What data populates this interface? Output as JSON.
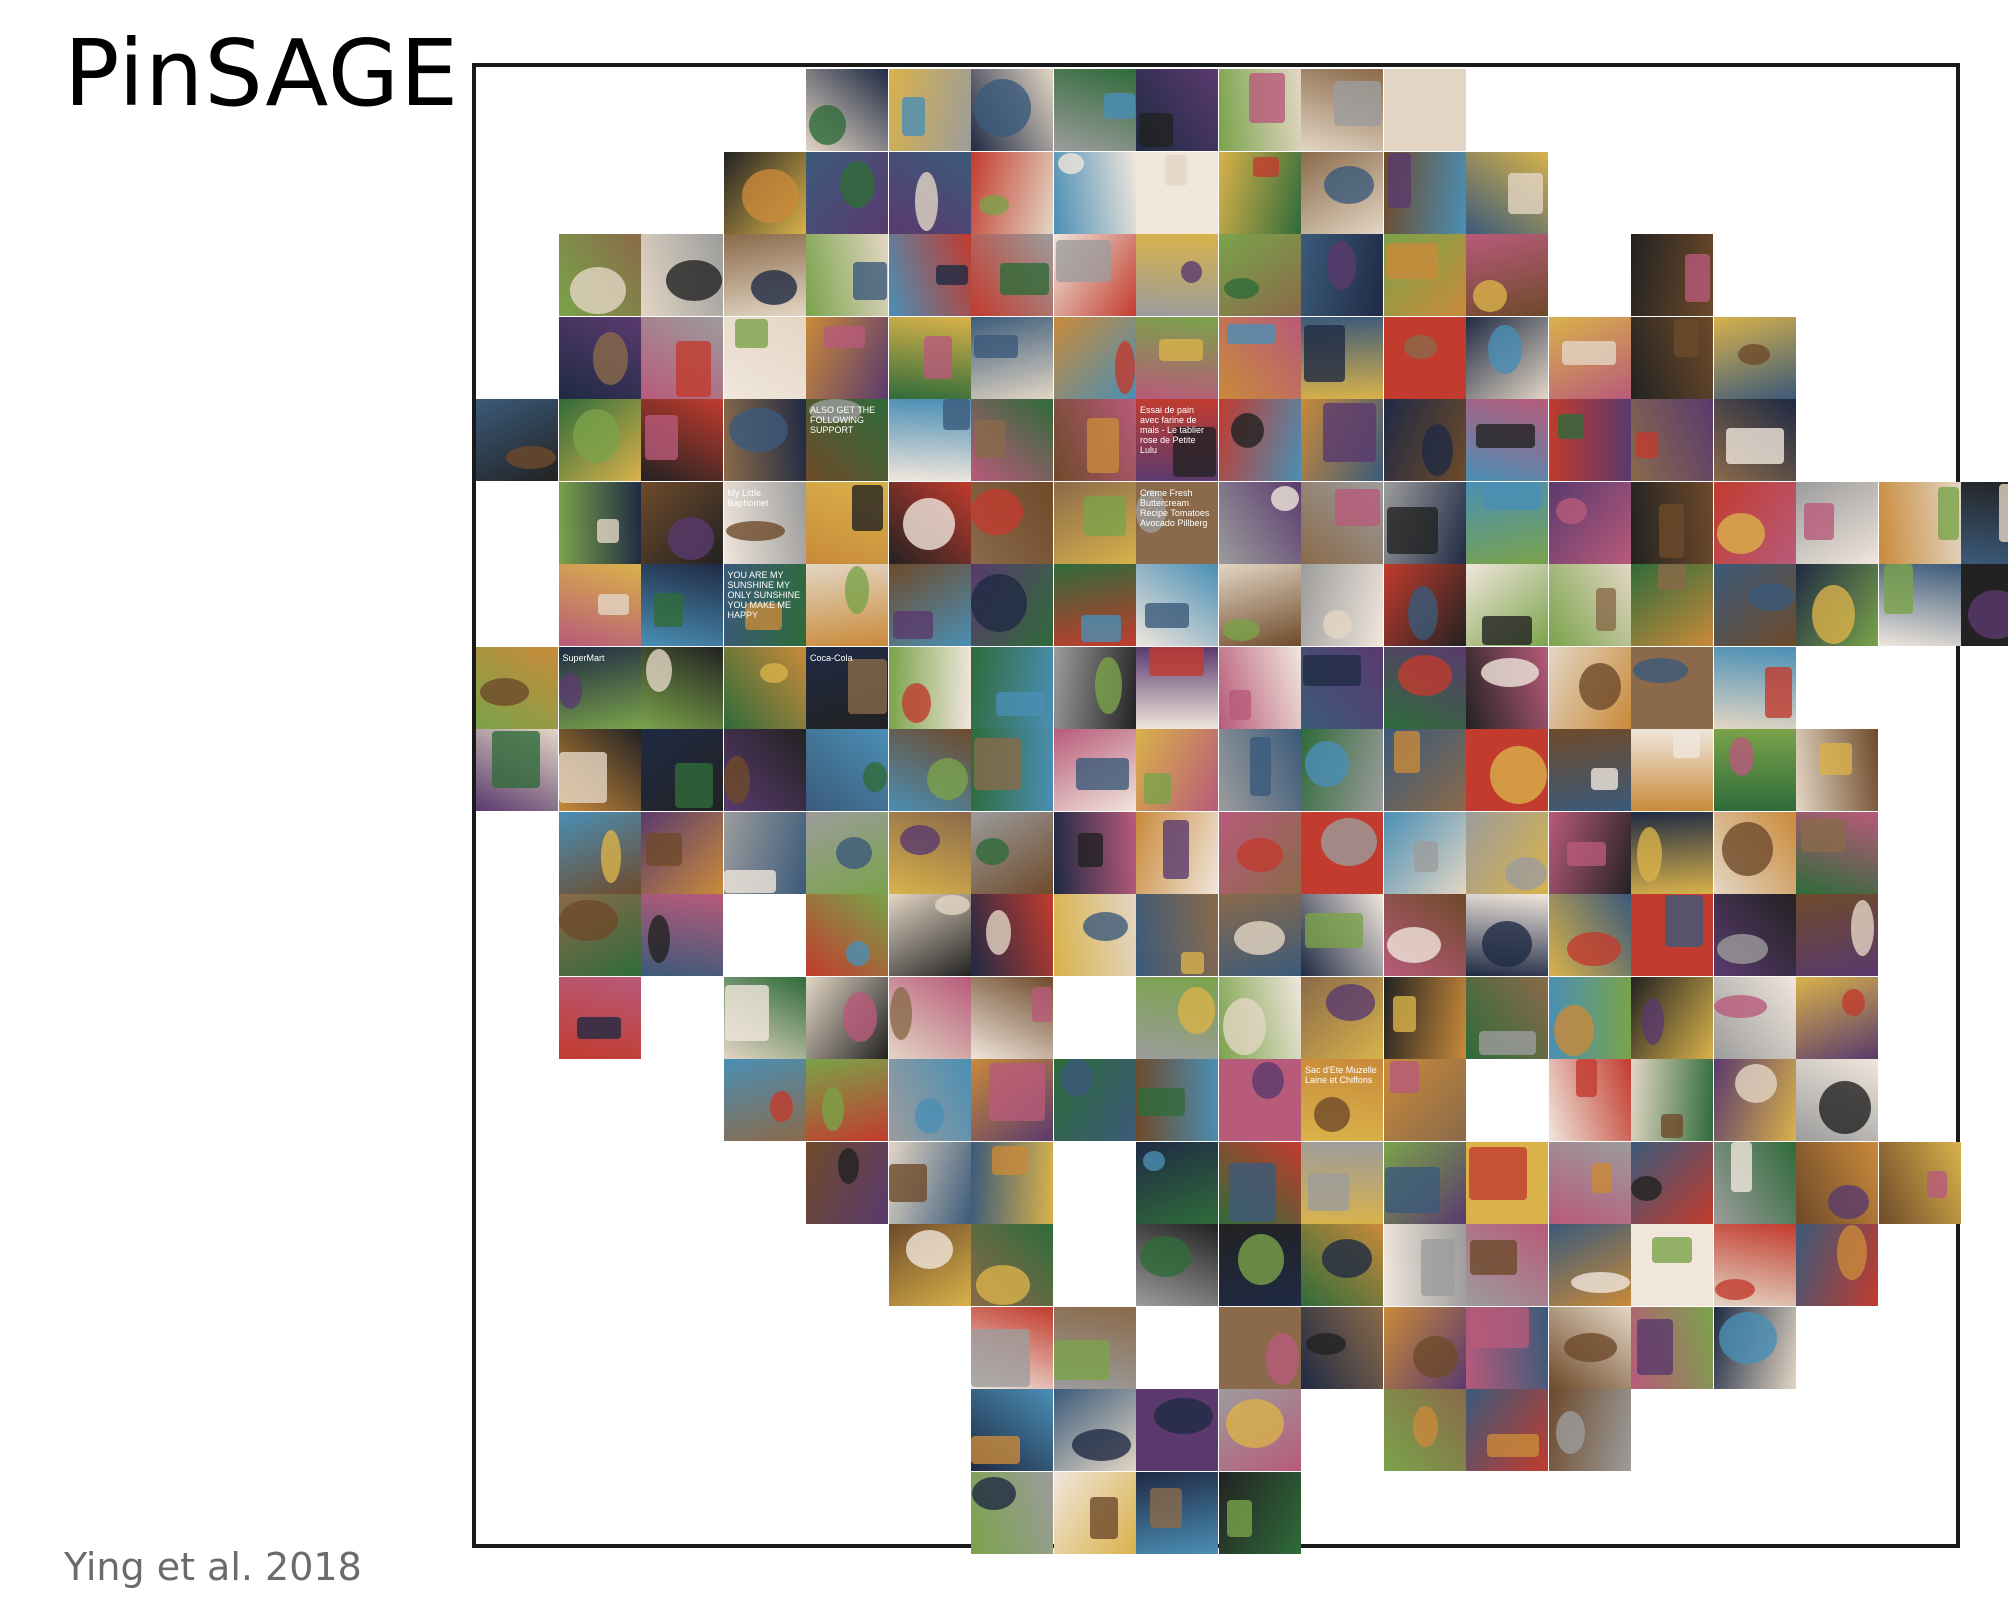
{
  "slide": {
    "title": "PinSAGE",
    "citation": "Ying et al. 2018"
  },
  "mosaic": {
    "description_colors": [
      "#3b5a7a",
      "#8a6a4a",
      "#c23b2e",
      "#2f6b3a",
      "#d9b24a",
      "#5a3a6e",
      "#9c9c9c",
      "#e3d6c4",
      "#1f2a44",
      "#b85a7a",
      "#4a8fb5",
      "#6e4a2a",
      "#222222",
      "#f0e6dc",
      "#7aa34a",
      "#c98a3a"
    ],
    "rows": [
      {
        "start": 4,
        "cols": [
          0,
          1,
          2,
          3,
          4,
          5,
          6,
          7
        ]
      },
      {
        "start": 3,
        "cols": [
          0,
          1,
          2,
          3,
          4,
          5,
          6,
          7,
          8,
          9
        ]
      },
      {
        "start": 1,
        "cols": [
          0,
          1,
          2,
          3,
          4,
          5,
          6,
          7,
          8,
          9,
          10,
          11,
          13
        ]
      },
      {
        "start": 1,
        "cols": [
          0,
          1,
          2,
          3,
          4,
          5,
          6,
          7,
          8,
          9,
          10,
          11,
          12,
          13,
          14
        ]
      },
      {
        "start": 0,
        "cols": [
          0,
          1,
          2,
          3,
          4,
          5,
          6,
          7,
          8,
          9,
          10,
          11,
          12,
          13,
          14,
          15
        ]
      },
      {
        "start": 1,
        "cols": [
          0,
          1,
          2,
          3,
          4,
          5,
          6,
          7,
          8,
          9,
          10,
          11,
          12,
          13,
          14,
          15,
          16,
          17
        ]
      },
      {
        "start": 1,
        "cols": [
          0,
          1,
          2,
          3,
          4,
          5,
          6,
          7,
          8,
          9,
          10,
          11,
          12,
          13,
          14,
          15,
          16,
          17
        ]
      },
      {
        "start": 0,
        "cols": [
          0,
          1,
          2,
          3,
          4,
          5,
          6,
          7,
          8,
          9,
          10,
          11,
          12,
          13,
          14,
          15
        ]
      },
      {
        "start": 0,
        "cols": [
          0,
          1,
          2,
          3,
          4,
          5,
          6,
          7,
          8,
          9,
          10,
          11,
          12,
          13,
          14,
          15,
          16
        ]
      },
      {
        "start": 1,
        "cols": [
          0,
          1,
          2,
          3,
          4,
          5,
          6,
          7,
          8,
          9,
          10,
          11,
          12,
          13,
          14,
          15
        ]
      },
      {
        "start": 1,
        "cols": [
          0,
          1,
          3,
          4,
          5,
          6,
          7,
          8,
          9,
          10,
          11,
          12,
          13,
          14,
          15
        ]
      },
      {
        "start": 1,
        "cols": [
          0,
          2,
          3,
          4,
          5,
          7,
          8,
          9,
          10,
          11,
          12,
          13,
          14,
          15
        ]
      },
      {
        "start": 3,
        "cols": [
          0,
          1,
          2,
          3,
          4,
          5,
          6,
          7,
          8,
          10,
          11,
          12,
          13
        ]
      },
      {
        "start": 4,
        "cols": [
          0,
          1,
          2,
          4,
          5,
          6,
          7,
          8,
          9,
          10,
          11,
          12,
          13
        ]
      },
      {
        "start": 5,
        "cols": [
          0,
          1,
          3,
          4,
          5,
          6,
          7,
          8,
          9,
          10,
          11
        ]
      },
      {
        "start": 6,
        "cols": [
          0,
          1,
          3,
          4,
          5,
          6,
          7,
          8,
          9
        ]
      },
      {
        "start": 6,
        "cols": [
          0,
          1,
          2,
          3,
          5,
          6,
          7
        ]
      },
      {
        "start": 6,
        "cols": [
          0,
          1,
          2,
          3
        ]
      }
    ],
    "text_tiles": [
      {
        "row": 5,
        "col": 3,
        "text": "My Little Baphomet"
      },
      {
        "row": 6,
        "col": 3,
        "text": "YOU ARE MY SUNSHINE MY ONLY SUNSHINE YOU MAKE ME HAPPY"
      },
      {
        "row": 4,
        "col": 4,
        "text": "ALSO GET THE FOLLOWING SUPPORT"
      },
      {
        "row": 4,
        "col": 8,
        "text": "Essai de pain avec farine de mais - Le tablier rose de Petite Lulu"
      },
      {
        "row": 5,
        "col": 8,
        "text": "Creme Fresh Buttercream Recipe Tomatoes Avocado Pillberg"
      },
      {
        "row": 12,
        "col": 10,
        "text": "Sac d'Ete Muzelle Laine et Chiffons"
      },
      {
        "row": 7,
        "col": 1,
        "text": "SuperMart"
      },
      {
        "row": 7,
        "col": 4,
        "text": "Coca-Cola"
      }
    ]
  }
}
